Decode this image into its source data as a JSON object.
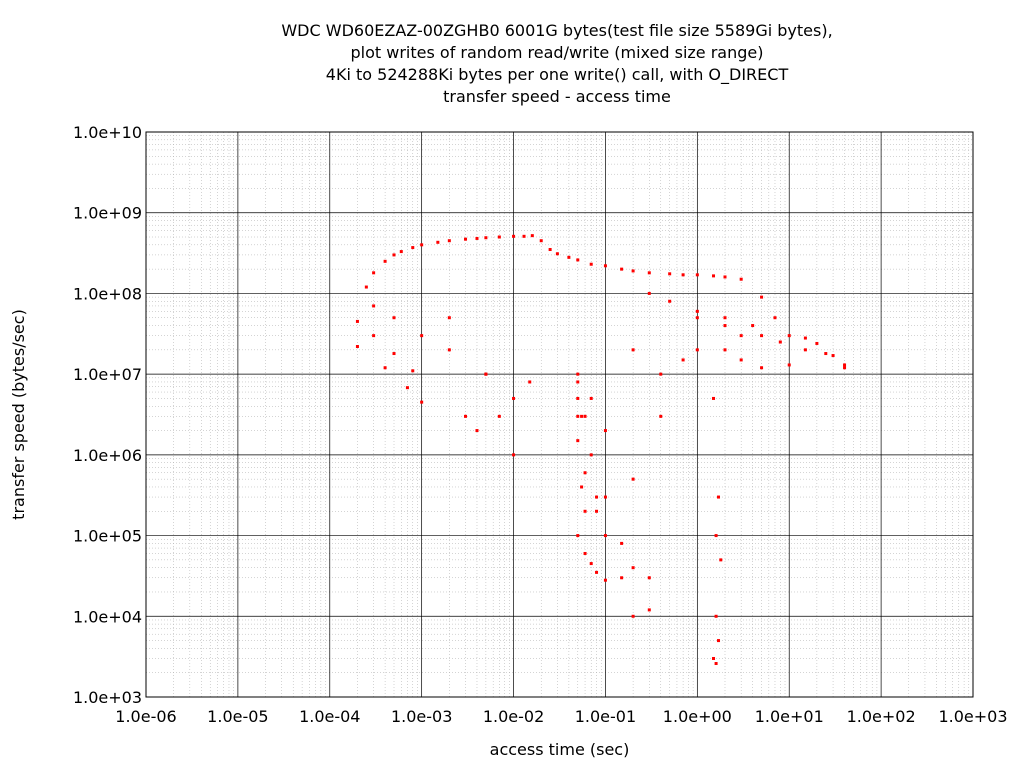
{
  "chart_data": {
    "type": "scatter",
    "title_lines": [
      "WDC WD60EZAZ-00ZGHB0 6001G bytes(test file size 5589Gi bytes),",
      "plot writes of random read/write (mixed size range)",
      "4Ki to 524288Ki bytes per one write() call, with O_DIRECT",
      "transfer speed - access time"
    ],
    "xlabel": "access time (sec)",
    "ylabel": "transfer speed (bytes/sec)",
    "x_scale": "log",
    "y_scale": "log",
    "xlim": [
      1e-06,
      1000
    ],
    "ylim": [
      1000,
      10000000000.0
    ],
    "grid": true,
    "x_ticks": [
      "1.0e-06",
      "1.0e-05",
      "1.0e-04",
      "1.0e-03",
      "1.0e-02",
      "1.0e-01",
      "1.0e+00",
      "1.0e+01",
      "1.0e+02",
      "1.0e+03"
    ],
    "y_ticks": [
      "1.0e+03",
      "1.0e+04",
      "1.0e+05",
      "1.0e+06",
      "1.0e+07",
      "1.0e+08",
      "1.0e+09",
      "1.0e+10"
    ],
    "point_color": "#ff0000",
    "series": [
      {
        "x": [
          0.00025,
          0.0003,
          0.0004,
          0.0005,
          0.0006,
          0.0008,
          0.001,
          0.0015,
          0.002,
          0.003,
          0.004,
          0.005,
          0.007,
          0.01,
          0.013,
          0.016,
          0.02,
          0.025,
          0.03,
          0.04,
          0.05,
          0.07,
          0.1,
          0.15,
          0.2,
          0.3,
          0.5,
          0.7,
          1.0,
          1.5,
          2.0,
          3.0,
          5.0,
          7.0,
          10.0,
          15.0,
          20.0,
          30.0,
          40.0,
          0.0003,
          0.0005,
          0.001,
          0.002,
          0.005,
          0.01,
          0.0002,
          0.0003,
          0.0005,
          0.0008,
          0.0002,
          0.0004,
          0.0007,
          0.001,
          0.002,
          0.003,
          0.004,
          0.005,
          0.007,
          0.01,
          0.015,
          0.05,
          0.06,
          0.07,
          0.08,
          0.1,
          0.15,
          0.2,
          0.3,
          0.05,
          0.06,
          0.07,
          0.08,
          0.1,
          0.15,
          0.2,
          0.3,
          0.05,
          0.07,
          0.1,
          0.2,
          0.4,
          0.06,
          0.08,
          0.1,
          1.5,
          1.7,
          1.6,
          1.8,
          1.6,
          1.7,
          1.5,
          1.6,
          0.2,
          0.4,
          0.7,
          1.0,
          2.0,
          3.0,
          5.0,
          10.0,
          1.0,
          2.0,
          3.0,
          5.0,
          8.0,
          15.0,
          25.0,
          40.0,
          0.3,
          0.5,
          1.0,
          2.0,
          4.0,
          0.05,
          0.05,
          0.055,
          0.05,
          0.06,
          0.055
        ],
        "y": [
          120000000.0,
          180000000.0,
          250000000.0,
          300000000.0,
          330000000.0,
          370000000.0,
          400000000.0,
          430000000.0,
          450000000.0,
          470000000.0,
          480000000.0,
          490000000.0,
          500000000.0,
          510000000.0,
          510000000.0,
          520000000.0,
          450000000.0,
          350000000.0,
          310000000.0,
          280000000.0,
          260000000.0,
          230000000.0,
          220000000.0,
          200000000.0,
          190000000.0,
          180000000.0,
          175000000.0,
          170000000.0,
          170000000.0,
          165000000.0,
          160000000.0,
          150000000.0,
          90000000.0,
          50000000.0,
          30000000.0,
          28000000.0,
          24000000.0,
          17000000.0,
          13000000.0,
          70000000.0,
          50000000.0,
          30000000.0,
          20000000.0,
          10000000.0,
          5000000.0,
          45000000.0,
          30000000.0,
          18000000.0,
          11000000.0,
          22000000.0,
          12000000.0,
          6800000.0,
          4500000.0,
          50000000.0,
          3000000.0,
          2000000.0,
          10000000.0,
          3000000.0,
          1000000.0,
          8000000.0,
          10000000.0,
          3000000.0,
          1000000.0,
          300000.0,
          100000.0,
          30000.0,
          10000.0,
          12000.0,
          100000.0,
          60000.0,
          45000.0,
          35000.0,
          28000.0,
          80000.0,
          40000.0,
          30000.0,
          3000000.0,
          5000000.0,
          2000000.0,
          500000.0,
          3000000.0,
          200000.0,
          200000.0,
          300000.0,
          5000000.0,
          300000.0,
          100000.0,
          50000.0,
          10000.0,
          5000.0,
          3000.0,
          2600.0,
          20000000.0,
          10000000.0,
          15000000.0,
          20000000.0,
          20000000.0,
          15000000.0,
          12000000.0,
          13000000.0,
          50000000.0,
          40000000.0,
          30000000.0,
          30000000.0,
          25000000.0,
          20000000.0,
          18000000.0,
          12000000.0,
          100000000.0,
          80000000.0,
          60000000.0,
          50000000.0,
          40000000.0,
          8000000.0,
          5000000.0,
          3000000.0,
          1500000.0,
          600000.0,
          400000.0
        ]
      }
    ]
  }
}
